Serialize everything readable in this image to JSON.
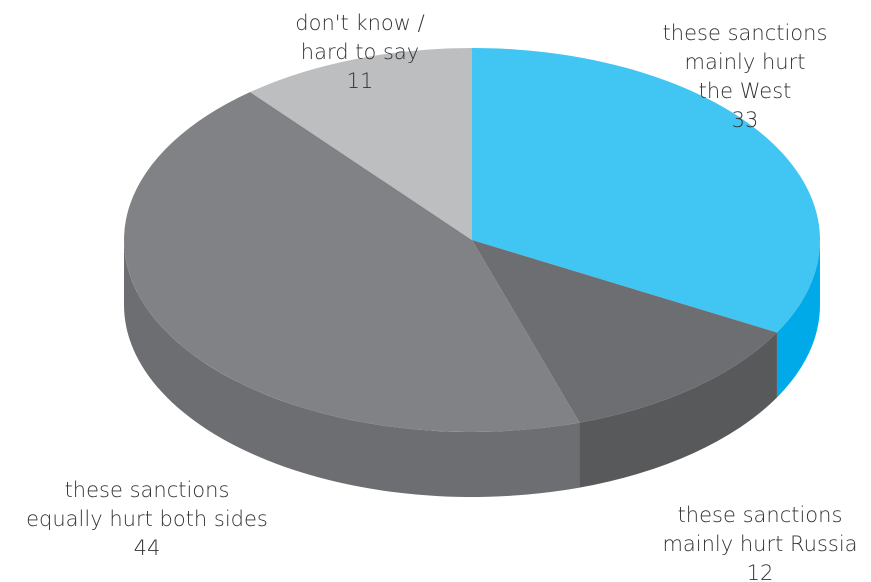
{
  "chart_data": {
    "type": "pie",
    "slices": [
      {
        "label_lines": [
          "these sanctions",
          "mainly hurt",
          "the West"
        ],
        "value": 33,
        "value_text": "33",
        "top_color": "#41C5F2",
        "side_color": "#00A9E8"
      },
      {
        "label_lines": [
          "these sanctions",
          "mainly hurt Russia"
        ],
        "value": 12,
        "value_text": "12",
        "top_color": "#6D6E71",
        "side_color": "#58595B"
      },
      {
        "label_lines": [
          "these sanctions",
          "equally hurt both sides"
        ],
        "value": 44,
        "value_text": "44",
        "top_color": "#808285",
        "side_color": "#6D6E71"
      },
      {
        "label_lines": [
          "don't know /",
          "hard to say"
        ],
        "value": 11,
        "value_text": "11",
        "top_color": "#BCBEC0",
        "side_color": "#A7A9AC"
      }
    ]
  }
}
